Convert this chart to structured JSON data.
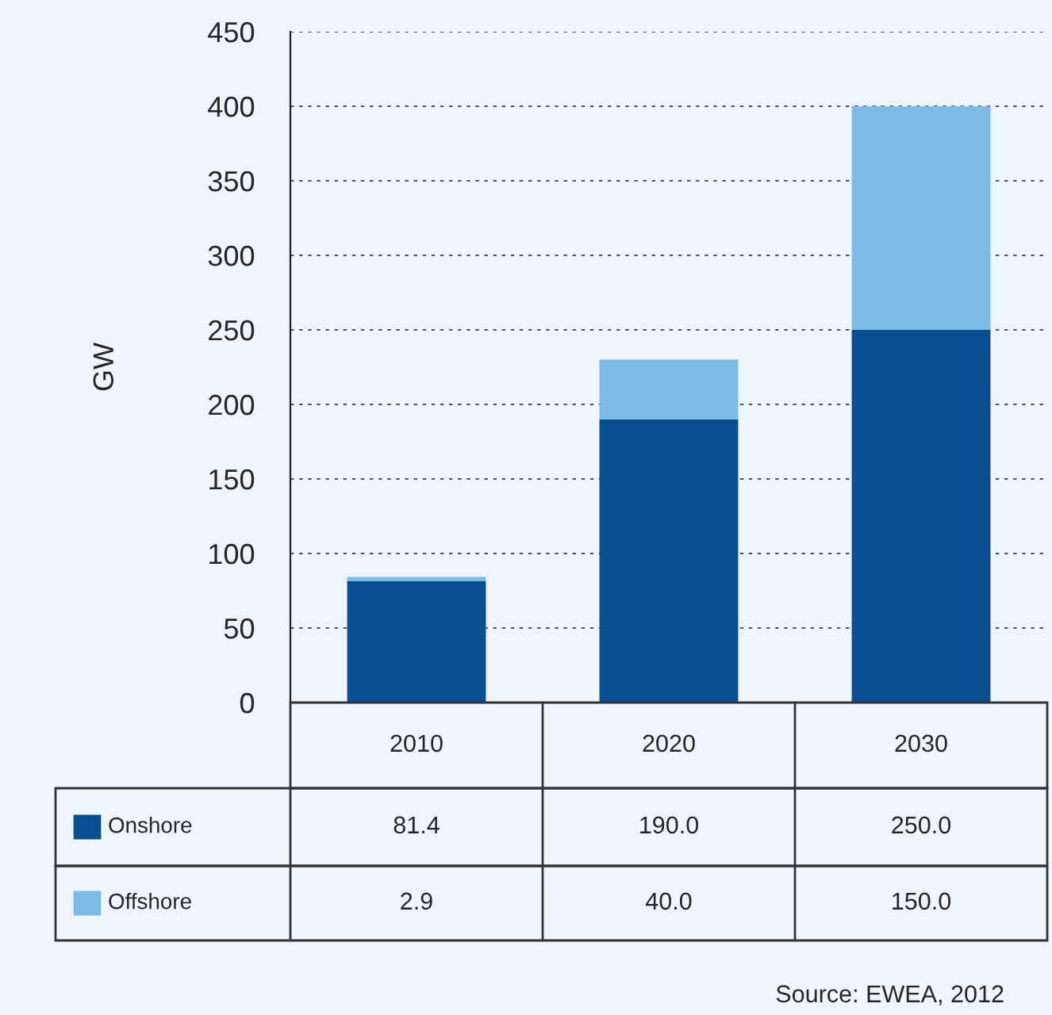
{
  "chart_data": {
    "type": "bar",
    "stacked": true,
    "ylabel": "GW",
    "categories": [
      "2010",
      "2020",
      "2030"
    ],
    "series": [
      {
        "name": "Onshore",
        "color": "#0a4f92",
        "values": [
          81.4,
          190.0,
          250.0
        ],
        "value_labels": [
          "81.4",
          "190.0",
          "250.0"
        ]
      },
      {
        "name": "Offshore",
        "color": "#7dbbe6",
        "values": [
          2.9,
          40.0,
          150.0
        ],
        "value_labels": [
          "2.9",
          "40.0",
          "150.0"
        ]
      }
    ],
    "ylim": [
      0,
      450
    ],
    "yticks": [
      0,
      50,
      100,
      150,
      200,
      250,
      300,
      350,
      400,
      450
    ],
    "grid": "y",
    "legend": "bottom left",
    "annotations": [
      "Source: EWEA, 2012"
    ]
  }
}
